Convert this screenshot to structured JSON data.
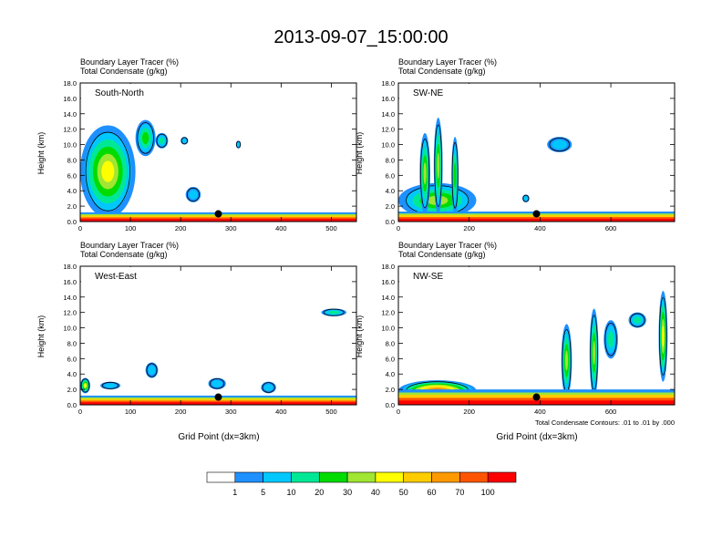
{
  "title": "2013-09-07_15:00:00",
  "var_line1": "Boundary Layer Tracer   (%)",
  "var_line2": "Total Condensate   (g/kg)",
  "ylabel": "Height (km)",
  "xlabel": "Grid Point (dx=3km)",
  "contour_note": "Total Condensate Contours: .01 to .01 by .000",
  "colors": {
    "scale": [
      "#ffffff",
      "#1e90ff",
      "#00c8ff",
      "#00e896",
      "#00dc00",
      "#a0e632",
      "#ffff00",
      "#ffcc00",
      "#ff9900",
      "#ff5500",
      "#ff0000"
    ],
    "contour": "#000000",
    "marker": "#000000"
  },
  "chart_data": [
    {
      "type": "heatmap",
      "panel_label": "South-North",
      "xlim": [
        0,
        550
      ],
      "ylim": [
        0,
        18
      ],
      "xticks": [
        "0",
        "100",
        "200",
        "300",
        "400",
        "500"
      ],
      "xtick_values": [
        0,
        100,
        200,
        300,
        400,
        500
      ],
      "yticks": [
        "0.0",
        "2.0",
        "4.0",
        "6.0",
        "8.0",
        "10.0",
        "12.0",
        "14.0",
        "16.0",
        "18.0"
      ],
      "marker": {
        "x": 275,
        "y": 1.0
      },
      "boundary_layer_top_km": 1.2,
      "features": [
        {
          "x0": 0,
          "x1": 110,
          "z0": 0.5,
          "z1": 12.5,
          "peak_pct": 40
        },
        {
          "x0": 110,
          "x1": 150,
          "z0": 8.5,
          "z1": 13.2,
          "peak_pct": 20
        },
        {
          "x0": 150,
          "x1": 175,
          "z0": 9.5,
          "z1": 11.5,
          "peak_pct": 10
        },
        {
          "x0": 200,
          "x1": 215,
          "z0": 10.0,
          "z1": 11.0,
          "peak_pct": 5
        },
        {
          "x0": 210,
          "x1": 240,
          "z0": 2.5,
          "z1": 4.5,
          "peak_pct": 5
        },
        {
          "x0": 310,
          "x1": 320,
          "z0": 9.5,
          "z1": 10.5,
          "peak_pct": 5
        }
      ]
    },
    {
      "type": "heatmap",
      "panel_label": "SW-NE",
      "xlim": [
        0,
        780
      ],
      "ylim": [
        0,
        18
      ],
      "xticks": [
        "0",
        "200",
        "400",
        "600"
      ],
      "xtick_values": [
        0,
        200,
        400,
        600
      ],
      "yticks": [
        "0.0",
        "2.0",
        "4.0",
        "6.0",
        "8.0",
        "10.0",
        "12.0",
        "14.0",
        "16.0",
        "18.0"
      ],
      "marker": {
        "x": 390,
        "y": 1.0
      },
      "boundary_layer_top_km": 1.3,
      "features": [
        {
          "x0": 0,
          "x1": 220,
          "z0": 0.5,
          "z1": 5.0,
          "peak_pct": 30
        },
        {
          "x0": 60,
          "x1": 90,
          "z0": 1.0,
          "z1": 11.5,
          "peak_pct": 30
        },
        {
          "x0": 100,
          "x1": 125,
          "z0": 1.0,
          "z1": 13.5,
          "peak_pct": 30
        },
        {
          "x0": 150,
          "x1": 170,
          "z0": 1.0,
          "z1": 11.0,
          "peak_pct": 20
        },
        {
          "x0": 420,
          "x1": 490,
          "z0": 9.0,
          "z1": 11.0,
          "peak_pct": 5
        },
        {
          "x0": 350,
          "x1": 370,
          "z0": 2.5,
          "z1": 3.5,
          "peak_pct": 5
        }
      ]
    },
    {
      "type": "heatmap",
      "panel_label": "West-East",
      "xlim": [
        0,
        550
      ],
      "ylim": [
        0,
        18
      ],
      "xticks": [
        "0",
        "100",
        "200",
        "300",
        "400",
        "500"
      ],
      "xtick_values": [
        0,
        100,
        200,
        300,
        400,
        500
      ],
      "yticks": [
        "0.0",
        "2.0",
        "4.0",
        "6.0",
        "8.0",
        "10.0",
        "12.0",
        "14.0",
        "16.0",
        "18.0"
      ],
      "marker": {
        "x": 275,
        "y": 1.0
      },
      "boundary_layer_top_km": 1.2,
      "features": [
        {
          "x0": 0,
          "x1": 20,
          "z0": 1.5,
          "z1": 3.5,
          "peak_pct": 40
        },
        {
          "x0": 40,
          "x1": 80,
          "z0": 2.0,
          "z1": 3.0,
          "peak_pct": 5
        },
        {
          "x0": 130,
          "x1": 155,
          "z0": 3.5,
          "z1": 5.5,
          "peak_pct": 5
        },
        {
          "x0": 255,
          "x1": 290,
          "z0": 2.0,
          "z1": 3.5,
          "peak_pct": 5
        },
        {
          "x0": 360,
          "x1": 390,
          "z0": 1.5,
          "z1": 3.0,
          "peak_pct": 5
        },
        {
          "x0": 480,
          "x1": 530,
          "z0": 11.5,
          "z1": 12.5,
          "peak_pct": 10
        }
      ]
    },
    {
      "type": "heatmap",
      "panel_label": "NW-SE",
      "xlim": [
        0,
        780
      ],
      "ylim": [
        0,
        18
      ],
      "xticks": [
        "0",
        "200",
        "400",
        "600"
      ],
      "xtick_values": [
        0,
        200,
        400,
        600
      ],
      "yticks": [
        "0.0",
        "2.0",
        "4.0",
        "6.0",
        "8.0",
        "10.0",
        "12.0",
        "14.0",
        "16.0",
        "18.0"
      ],
      "marker": {
        "x": 390,
        "y": 1.0
      },
      "boundary_layer_top_km": 2.0,
      "features": [
        {
          "x0": 0,
          "x1": 220,
          "z0": 0.5,
          "z1": 3.2,
          "peak_pct": 70
        },
        {
          "x0": 460,
          "x1": 490,
          "z0": 1.0,
          "z1": 10.5,
          "peak_pct": 30
        },
        {
          "x0": 540,
          "x1": 565,
          "z0": 1.0,
          "z1": 12.5,
          "peak_pct": 30
        },
        {
          "x0": 580,
          "x1": 620,
          "z0": 6.0,
          "z1": 11.0,
          "peak_pct": 10
        },
        {
          "x0": 650,
          "x1": 700,
          "z0": 10.0,
          "z1": 12.0,
          "peak_pct": 10
        },
        {
          "x0": 735,
          "x1": 760,
          "z0": 3.0,
          "z1": 14.8,
          "peak_pct": 40
        }
      ]
    }
  ],
  "colorbar": {
    "labels": [
      "1",
      "5",
      "10",
      "20",
      "30",
      "40",
      "50",
      "60",
      "70",
      "100"
    ]
  }
}
